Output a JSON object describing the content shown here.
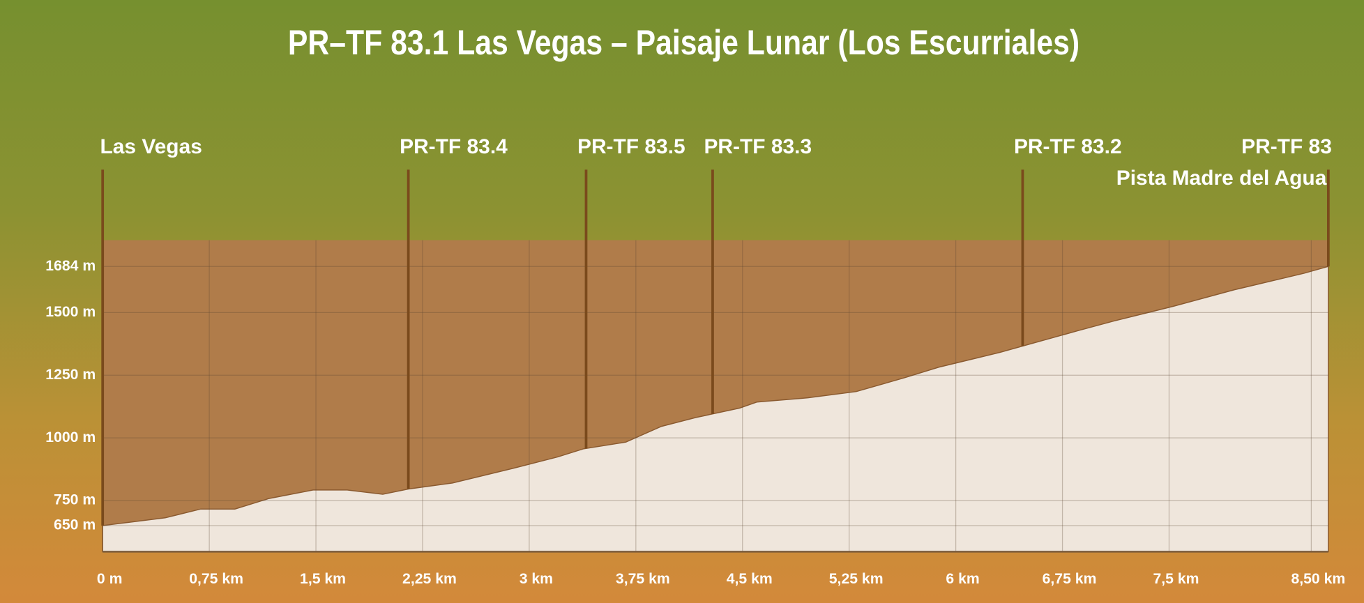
{
  "chart_data": {
    "type": "area",
    "title": "PR–TF 83.1 Las Vegas – Paisaje Lunar (Los Escurriales)",
    "x": [
      0,
      0.2,
      0.44,
      0.69,
      0.93,
      1.17,
      1.48,
      1.72,
      1.97,
      2.15,
      2.46,
      2.89,
      3.2,
      3.38,
      3.68,
      3.93,
      4.17,
      4.48,
      4.6,
      4.96,
      5.3,
      5.64,
      5.88,
      6.31,
      6.86,
      7.11,
      7.53,
      7.96,
      8.45,
      8.62
    ],
    "values": [
      650,
      664,
      681,
      716,
      716,
      758,
      792,
      792,
      775,
      796,
      820,
      879,
      924,
      956,
      983,
      1046,
      1081,
      1119,
      1143,
      1160,
      1185,
      1240,
      1282,
      1341,
      1428,
      1466,
      1525,
      1591,
      1657,
      1684
    ],
    "color": "#efe6dc",
    "background_color": "#b07c4a",
    "xlim": [
      0,
      8.62
    ],
    "ylim": [
      546,
      1789
    ],
    "xticks": [
      {
        "value": 0,
        "label": "0 m"
      },
      {
        "value": 0.75,
        "label": "0,75 km"
      },
      {
        "value": 1.5,
        "label": "1,5 km"
      },
      {
        "value": 2.25,
        "label": "2,25 km"
      },
      {
        "value": 3,
        "label": "3 km"
      },
      {
        "value": 3.75,
        "label": "3,75 km"
      },
      {
        "value": 4.5,
        "label": "4,5 km"
      },
      {
        "value": 5.25,
        "label": "5,25 km"
      },
      {
        "value": 6,
        "label": "6 km"
      },
      {
        "value": 6.75,
        "label": "6,75 km"
      },
      {
        "value": 7.5,
        "label": "7,5 km"
      },
      {
        "value": 8.5,
        "label": "8,50 km"
      }
    ],
    "yticks": [
      {
        "value": 650,
        "label": "650 m"
      },
      {
        "value": 750,
        "label": "750 m"
      },
      {
        "value": 1000,
        "label": "1000 m"
      },
      {
        "value": 1250,
        "label": "1250 m"
      },
      {
        "value": 1500,
        "label": "1500 m"
      },
      {
        "value": 1684,
        "label": "1684 m"
      }
    ],
    "grid": true,
    "waypoints": [
      {
        "lines": [
          "Las Vegas"
        ],
        "km": 0
      },
      {
        "lines": [
          "PR-TF 83.4"
        ],
        "km": 2.15
      },
      {
        "lines": [
          "PR-TF 83.5"
        ],
        "km": 3.4
      },
      {
        "lines": [
          "PR-TF 83.3"
        ],
        "km": 4.29
      },
      {
        "lines": [
          "PR-TF 83.2"
        ],
        "km": 6.47
      },
      {
        "lines": [
          "PR-TF 83",
          "Pista Madre del Agua"
        ],
        "km": 8.62
      }
    ]
  }
}
